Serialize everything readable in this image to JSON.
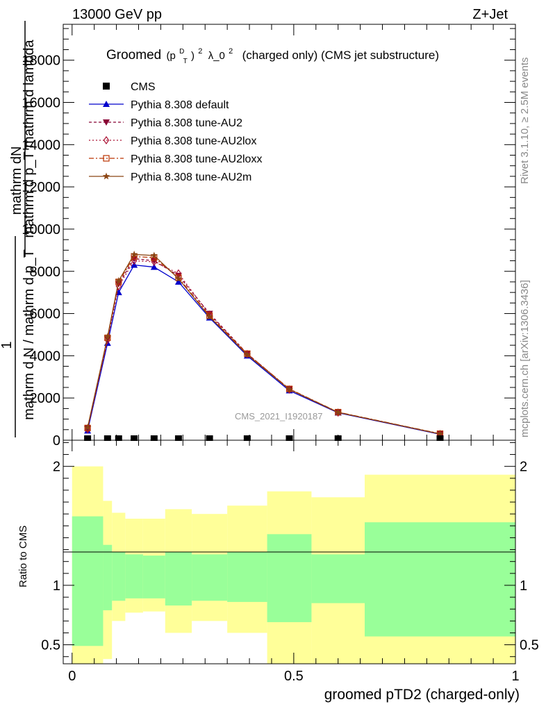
{
  "header": {
    "left": "13000 GeV pp",
    "right": "Z+Jet"
  },
  "side_labels": {
    "rivet": "Rivet 3.1.10, ≥ 2.5M events",
    "mcplots": "mcplots.cern.ch [arXiv:1306.3436]"
  },
  "watermark": "CMS_2021_I1920187",
  "chart_data": {
    "type": "line",
    "title": {
      "word": "Groomed",
      "p": "(p",
      "p_sup": "D",
      "p_sub": "T",
      "close": ")",
      "exp": "2",
      "lambda": "λ_0",
      "lambda_exp": "2",
      "rest": "(charged only) (CMS jet substructure)"
    },
    "ylabel": {
      "top_num": "mathrm dN",
      "top_den": "mathrm d p_T mathrm d lambda",
      "one": "1",
      "bottom_num": "mathrm d N / mathrm d p_T",
      "t_sub": "T"
    },
    "xlabel": "groomed pTD2 (charged-only)",
    "xlim": [
      -0.02,
      1.0
    ],
    "ylim": [
      0,
      19700
    ],
    "x_ticks": [
      "0",
      "0.5",
      "1"
    ],
    "y_ticks": [
      "0",
      "2000",
      "4000",
      "6000",
      "8000",
      "10000",
      "12000",
      "14000",
      "16000",
      "18000"
    ],
    "x": [
      0.035,
      0.08,
      0.105,
      0.14,
      0.185,
      0.24,
      0.31,
      0.395,
      0.49,
      0.6,
      0.83
    ],
    "bin_edges": [
      0.0,
      0.07,
      0.09,
      0.12,
      0.16,
      0.21,
      0.27,
      0.35,
      0.44,
      0.54,
      0.66,
      1.0
    ],
    "cms": [
      0,
      0,
      0,
      0,
      0,
      0,
      0,
      0,
      0,
      0,
      0
    ],
    "series": [
      {
        "name": "Pythia 8.308 default",
        "color": "#0000cc",
        "dash": "",
        "marker": "triangle-up",
        "values": [
          450,
          4600,
          7000,
          8300,
          8200,
          7500,
          5800,
          4000,
          2350,
          1300,
          280
        ]
      },
      {
        "name": "Pythia 8.308 tune-AU2",
        "color": "#880033",
        "dash": "4,3",
        "marker": "triangle-down",
        "values": [
          560,
          4800,
          7400,
          8600,
          8500,
          7800,
          6000,
          4100,
          2420,
          1320,
          300
        ]
      },
      {
        "name": "Pythia 8.308 tune-AU2lox",
        "color": "#aa1133",
        "dash": "2,3",
        "marker": "diamond-open",
        "values": [
          520,
          4750,
          7300,
          8500,
          8450,
          7900,
          5950,
          4080,
          2400,
          1310,
          290
        ]
      },
      {
        "name": "Pythia 8.308 tune-AU2loxx",
        "color": "#bb3300",
        "dash": "7,3,2,3",
        "marker": "square-open",
        "values": [
          580,
          4850,
          7500,
          8700,
          8650,
          7700,
          5900,
          4100,
          2430,
          1330,
          310
        ]
      },
      {
        "name": "Pythia 8.308 tune-AU2m",
        "color": "#8b4513",
        "dash": "",
        "marker": "star",
        "values": [
          600,
          4900,
          7550,
          8800,
          8750,
          7650,
          5850,
          4050,
          2410,
          1320,
          300
        ]
      }
    ],
    "legend_data_label": "CMS",
    "ratio": {
      "ylabel": "Ratio to CMS",
      "ylim": [
        0.34,
        2.22
      ],
      "y_ticks": [
        "0.5",
        "1",
        "2"
      ],
      "band_yellow": [
        [
          0.34,
          2.0
        ],
        [
          0.38,
          1.71
        ],
        [
          0.7,
          1.61
        ],
        [
          0.77,
          1.56
        ],
        [
          0.78,
          1.56
        ],
        [
          0.6,
          1.64
        ],
        [
          0.7,
          1.6
        ],
        [
          0.6,
          1.67
        ],
        [
          0.34,
          1.79
        ],
        [
          0.34,
          1.74
        ],
        [
          0.34,
          1.93
        ]
      ],
      "band_green": [
        [
          0.49,
          1.58
        ],
        [
          0.79,
          1.34
        ],
        [
          0.87,
          1.28
        ],
        [
          0.89,
          1.26
        ],
        [
          0.89,
          1.25
        ],
        [
          0.83,
          1.28
        ],
        [
          0.87,
          1.26
        ],
        [
          0.86,
          1.28
        ],
        [
          0.69,
          1.43
        ],
        [
          0.85,
          1.26
        ],
        [
          0.57,
          1.53
        ]
      ]
    }
  }
}
